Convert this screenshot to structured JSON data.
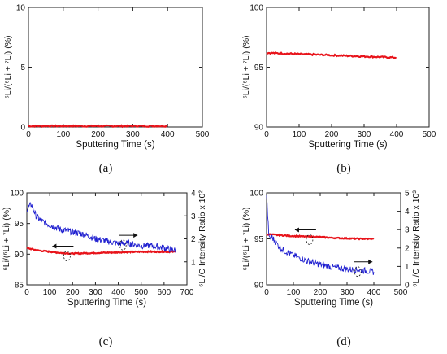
{
  "chart_data": [
    {
      "panel": "a",
      "caption": "(a)",
      "type": "line",
      "xlabel": "Sputtering Time (s)",
      "ylabel": "⁶Li/(⁶Li + ⁷Li) (%)",
      "xlim": [
        0,
        500
      ],
      "ylim": [
        0,
        10
      ],
      "xticks": [
        "0",
        "100",
        "200",
        "300",
        "400",
        "500"
      ],
      "yticks": [
        "0",
        "5",
        "10"
      ],
      "series": [
        {
          "color": "#e8141b",
          "axis": "left",
          "x": [
            0,
            50,
            100,
            150,
            200,
            250,
            300,
            350,
            400
          ],
          "y": [
            0.08,
            0.08,
            0.08,
            0.08,
            0.08,
            0.08,
            0.08,
            0.08,
            0.08
          ]
        }
      ]
    },
    {
      "panel": "b",
      "caption": "(b)",
      "type": "line",
      "xlabel": "Sputtering Time (s)",
      "ylabel": "⁶Li/(⁶Li + ⁷Li) (%)",
      "xlim": [
        0,
        500
      ],
      "ylim": [
        90,
        100
      ],
      "xticks": [
        "0",
        "100",
        "200",
        "300",
        "400",
        "500"
      ],
      "yticks": [
        "90",
        "95",
        "100"
      ],
      "series": [
        {
          "color": "#e8141b",
          "axis": "left",
          "x": [
            0,
            50,
            100,
            150,
            200,
            250,
            300,
            350,
            400
          ],
          "y": [
            96.2,
            96.15,
            96.1,
            96.05,
            96.0,
            95.95,
            95.9,
            95.85,
            95.8
          ]
        }
      ]
    },
    {
      "panel": "c",
      "caption": "(c)",
      "type": "line",
      "xlabel": "Sputtering Time (s)",
      "ylabel": "⁶Li/(⁶Li + ⁷Li) (%)",
      "y2label": "⁶Li/C Intensity Ratio x 10²",
      "xlim": [
        0,
        700
      ],
      "ylim": [
        85,
        100
      ],
      "y2lim": [
        0,
        4
      ],
      "xticks": [
        "0",
        "100",
        "200",
        "300",
        "400",
        "500",
        "600",
        "700"
      ],
      "yticks": [
        "85",
        "90",
        "95",
        "100"
      ],
      "y2ticks": [
        "1",
        "2",
        "3",
        "4"
      ],
      "series": [
        {
          "color": "#e8141b",
          "axis": "left",
          "x": [
            0,
            50,
            100,
            150,
            200,
            300,
            400,
            500,
            600,
            650
          ],
          "y": [
            91.0,
            90.6,
            90.4,
            90.2,
            90.1,
            90.2,
            90.3,
            90.4,
            90.4,
            90.4
          ]
        },
        {
          "color": "#2020d0",
          "axis": "right",
          "x": [
            0,
            20,
            40,
            60,
            100,
            150,
            200,
            250,
            300,
            350,
            400,
            450,
            500,
            550,
            600,
            650
          ],
          "y": [
            3.3,
            3.5,
            3.0,
            2.8,
            2.6,
            2.4,
            2.3,
            2.2,
            2.0,
            1.9,
            1.8,
            1.8,
            1.7,
            1.7,
            1.6,
            1.5
          ]
        }
      ]
    },
    {
      "panel": "d",
      "caption": "(d)",
      "type": "line",
      "xlabel": "Sputtering Time (s)",
      "ylabel": "⁶Li/(⁶Li + ⁷Li) (%)",
      "y2label": "⁶Li/C Intensity Ratio x 10³",
      "xlim": [
        0,
        500
      ],
      "ylim": [
        90,
        100
      ],
      "y2lim": [
        0,
        5
      ],
      "xticks": [
        "0",
        "100",
        "200",
        "300",
        "400",
        "500"
      ],
      "yticks": [
        "90",
        "95",
        "100"
      ],
      "y2ticks": [
        "0",
        "1",
        "2",
        "3",
        "4",
        "5"
      ],
      "series": [
        {
          "color": "#e8141b",
          "axis": "left",
          "x": [
            0,
            50,
            100,
            150,
            200,
            250,
            300,
            350,
            400
          ],
          "y": [
            95.5,
            95.4,
            95.3,
            95.25,
            95.2,
            95.1,
            95.05,
            95.0,
            95.0
          ]
        },
        {
          "color": "#2020d0",
          "axis": "right",
          "x": [
            0,
            5,
            10,
            20,
            40,
            60,
            100,
            150,
            200,
            250,
            300,
            350,
            400
          ],
          "y": [
            4.9,
            3.5,
            2.5,
            2.6,
            2.2,
            1.9,
            1.6,
            1.3,
            1.1,
            0.95,
            0.85,
            0.8,
            0.7
          ]
        }
      ]
    }
  ]
}
